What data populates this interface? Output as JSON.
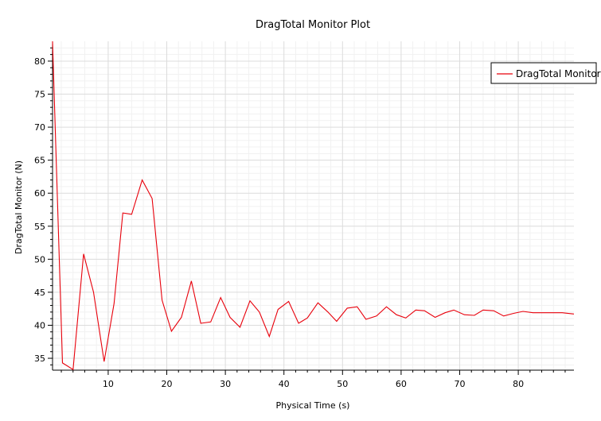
{
  "chart_data": {
    "type": "line",
    "title": "DragTotal Monitor Plot",
    "xlabel": "Physical Time (s)",
    "ylabel": "DragTotal Monitor (N)",
    "xlim": [
      0.5,
      89.5
    ],
    "ylim": [
      33.2,
      83.0
    ],
    "x_ticks": [
      10,
      20,
      30,
      40,
      50,
      60,
      70,
      80
    ],
    "y_ticks": [
      35,
      40,
      45,
      50,
      55,
      60,
      65,
      70,
      75,
      80
    ],
    "grid": true,
    "legend_position": "top-right",
    "series": [
      {
        "name": "DragTotal Monitor",
        "color": "#e8000b",
        "x": [
          0.5,
          2.2,
          4.0,
          5.8,
          7.5,
          9.3,
          11.0,
          12.5,
          14.0,
          15.8,
          17.5,
          19.2,
          20.8,
          22.5,
          24.2,
          25.8,
          27.5,
          29.2,
          30.8,
          32.5,
          34.2,
          35.8,
          37.5,
          39.0,
          40.8,
          42.5,
          44.0,
          45.8,
          47.5,
          49.0,
          50.8,
          52.5,
          54.0,
          55.8,
          57.5,
          59.2,
          60.8,
          62.5,
          64.0,
          65.8,
          67.5,
          69.0,
          70.8,
          72.5,
          74.0,
          75.8,
          77.5,
          79.2,
          80.8,
          82.5,
          84.0,
          85.8,
          87.5,
          89.5
        ],
        "y": [
          83.0,
          34.3,
          33.3,
          50.8,
          45.0,
          34.5,
          43.3,
          57.0,
          56.8,
          62.0,
          59.2,
          43.8,
          39.1,
          41.2,
          46.7,
          40.3,
          40.5,
          44.2,
          41.2,
          39.7,
          43.7,
          42.0,
          38.3,
          42.4,
          43.6,
          40.3,
          41.1,
          43.4,
          42.0,
          40.6,
          42.6,
          42.8,
          40.9,
          41.4,
          42.8,
          41.6,
          41.1,
          42.3,
          42.2,
          41.2,
          41.9,
          42.3,
          41.6,
          41.5,
          42.3,
          42.2,
          41.4,
          41.8,
          42.1,
          41.9,
          41.9,
          41.9,
          41.9,
          41.7
        ]
      }
    ]
  }
}
